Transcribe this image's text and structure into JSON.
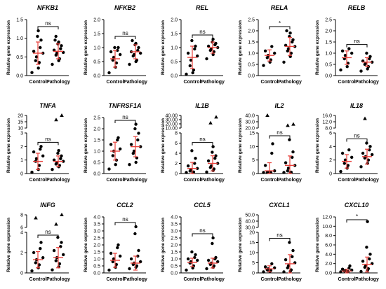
{
  "ylabel": "Relative gene expression",
  "groups": [
    "Control",
    "Pathology"
  ],
  "colors": {
    "points": "#000000",
    "marker": "#e8413b",
    "axis": "#000000",
    "text": "#000000"
  },
  "chart_data": [
    {
      "type": "scatter",
      "title": "NFKB1",
      "ylim": [
        0,
        1.5
      ],
      "ticks": [
        "0.0",
        "0.5",
        "1.0",
        "1.5"
      ],
      "sig": "ns",
      "series": [
        {
          "name": "Control",
          "values": [
            0.08,
            0.2,
            0.35,
            0.4,
            0.5,
            0.6,
            0.65,
            0.75,
            0.95,
            1.05,
            1.2
          ],
          "mean": 0.6,
          "sd": 0.3
        },
        {
          "name": "Pathology",
          "values": [
            0.3,
            0.4,
            0.45,
            0.55,
            0.6,
            0.62,
            0.68,
            0.72,
            0.8,
            0.85,
            0.9,
            0.95,
            1.05
          ],
          "mean": 0.65,
          "sd": 0.2
        }
      ]
    },
    {
      "type": "scatter",
      "title": "NFKB2",
      "ylim": [
        0,
        2.0
      ],
      "ticks": [
        "0.0",
        "0.5",
        "1.0",
        "1.5",
        "2.0"
      ],
      "sig": "ns",
      "series": [
        {
          "name": "Control",
          "values": [
            0.1,
            0.3,
            0.45,
            0.55,
            0.65,
            0.75,
            0.85,
            0.9,
            1.0,
            1.0
          ],
          "mean": 0.6,
          "sd": 0.3
        },
        {
          "name": "Pathology",
          "values": [
            0.4,
            0.5,
            0.55,
            0.7,
            0.75,
            0.8,
            0.85,
            0.9,
            1.0,
            1.1,
            1.15,
            1.25
          ],
          "mean": 0.85,
          "sd": 0.25
        }
      ]
    },
    {
      "type": "scatter",
      "title": "REL",
      "ylim": [
        0,
        2.0
      ],
      "ticks": [
        "0.0",
        "0.5",
        "1.0",
        "1.5",
        "2.0"
      ],
      "sig": "ns",
      "series": [
        {
          "name": "Control",
          "values": [
            0.05,
            0.1,
            0.2,
            0.35,
            0.55,
            0.7,
            0.8,
            0.95,
            1.05,
            1.25
          ],
          "mean": 0.65,
          "sd": 0.4
        },
        {
          "name": "Pathology",
          "values": [
            0.6,
            0.75,
            0.85,
            0.9,
            0.95,
            1.0,
            1.05,
            1.1,
            1.15,
            1.2,
            1.3
          ],
          "mean": 1.0,
          "sd": 0.2
        }
      ]
    },
    {
      "type": "scatter",
      "title": "RELA",
      "ylim": [
        0,
        2.5
      ],
      "ticks": [
        "0.0",
        "0.5",
        "1.0",
        "1.5",
        "2.0",
        "2.5"
      ],
      "sig": "*",
      "series": [
        {
          "name": "Control",
          "values": [
            0.45,
            0.6,
            0.7,
            0.8,
            0.9,
            1.0,
            1.1,
            1.3
          ],
          "mean": 0.9,
          "sd": 0.25
        },
        {
          "name": "Pathology",
          "values": [
            0.6,
            0.85,
            1.0,
            1.1,
            1.2,
            1.3,
            1.35,
            1.5,
            1.6,
            1.75,
            1.9,
            2.0
          ],
          "mean": 1.3,
          "sd": 0.4
        }
      ]
    },
    {
      "type": "scatter",
      "title": "RELB",
      "ylim": [
        0,
        2.5
      ],
      "ticks": [
        "0.0",
        "0.5",
        "1.0",
        "1.5",
        "2.0",
        "2.5"
      ],
      "sig": "ns",
      "series": [
        {
          "name": "Control",
          "values": [
            0.25,
            0.4,
            0.55,
            0.75,
            0.9,
            1.0,
            1.1,
            1.2
          ],
          "mean": 0.8,
          "sd": 0.3
        },
        {
          "name": "Pathology",
          "values": [
            0.2,
            0.3,
            0.4,
            0.5,
            0.55,
            0.6,
            0.65,
            0.75,
            0.85,
            1.0
          ],
          "mean": 0.6,
          "sd": 0.2
        }
      ]
    },
    {
      "type": "scatter",
      "title": "TNFA",
      "ylim": [
        0,
        3
      ],
      "ticks": [
        "0",
        "1",
        "2",
        "3"
      ],
      "break": [
        "10",
        "15",
        "20"
      ],
      "sig": "ns",
      "series": [
        {
          "name": "Control",
          "values": [
            0.1,
            0.3,
            0.6,
            0.9,
            1.1,
            1.3,
            1.6,
            1.8,
            2.0
          ],
          "mean": 0.9,
          "sd": 0.6
        },
        {
          "name": "Pathology",
          "values": [
            0.3,
            0.5,
            0.6,
            0.7,
            0.8,
            0.9,
            1.0,
            1.1,
            1.3,
            1.5,
            1.7
          ],
          "mean": 0.9,
          "sd": 0.4,
          "outliers": [
            16.5,
            20
          ]
        }
      ]
    },
    {
      "type": "scatter",
      "title": "TNFRSF1A",
      "ylim": [
        0,
        2.5
      ],
      "ticks": [
        "0.0",
        "0.5",
        "1.0",
        "1.5",
        "2.0",
        "2.5"
      ],
      "sig": "ns",
      "series": [
        {
          "name": "Control",
          "values": [
            0.2,
            0.4,
            0.6,
            0.8,
            1.0,
            1.1,
            1.3,
            1.5,
            1.6
          ],
          "mean": 1.0,
          "sd": 0.4
        },
        {
          "name": "Pathology",
          "values": [
            0.4,
            0.5,
            0.7,
            0.9,
            1.0,
            1.2,
            1.3,
            1.5,
            1.8,
            2.0,
            2.2
          ],
          "mean": 1.2,
          "sd": 0.45
        }
      ]
    },
    {
      "type": "scatter",
      "title": "IL1B",
      "ylim": [
        0,
        8
      ],
      "ticks": [
        "0",
        "2",
        "4",
        "6",
        "8"
      ],
      "break": [
        "10.00",
        "20.00",
        "30.00",
        "40.00"
      ],
      "sig": "ns",
      "series": [
        {
          "name": "Control",
          "values": [
            0.1,
            0.2,
            0.3,
            0.5,
            0.8,
            1.0,
            1.5,
            2.0,
            3.0,
            4.5
          ],
          "mean": 1.0,
          "sd": 1.2
        },
        {
          "name": "Pathology",
          "values": [
            0.3,
            0.6,
            0.9,
            1.2,
            1.5,
            2.0,
            2.5,
            3.0,
            3.5,
            4.2,
            5.3
          ],
          "mean": 2.0,
          "sd": 1.5,
          "outliers": [
            22,
            36
          ]
        }
      ]
    },
    {
      "type": "scatter",
      "title": "IL2",
      "ylim": [
        0,
        15
      ],
      "ticks": [
        "0",
        "5",
        "10",
        "15"
      ],
      "break": [
        "20.0",
        "30.0",
        "40.0"
      ],
      "sig": "ns",
      "series": [
        {
          "name": "Control",
          "values": [
            0.0,
            0.1,
            0.2,
            0.3,
            0.5,
            1.0,
            3.0,
            7.5,
            11.0
          ],
          "mean": 1.0,
          "sd": 3.0,
          "outliers": [
            40
          ]
        },
        {
          "name": "Pathology",
          "values": [
            0.0,
            0.2,
            0.5,
            1.0,
            2.0,
            3.0,
            4.0,
            6.0,
            8.0,
            12.5
          ],
          "mean": 3.0,
          "sd": 3.5,
          "outliers": [
            24,
            26
          ]
        }
      ]
    },
    {
      "type": "scatter",
      "title": "IL18",
      "ylim": [
        0,
        6
      ],
      "ticks": [
        "0",
        "2",
        "4",
        "6"
      ],
      "break": [
        "8.0",
        "12.0",
        "16.0"
      ],
      "sig": "ns",
      "series": [
        {
          "name": "Control",
          "values": [
            0.3,
            0.8,
            1.2,
            1.5,
            2.0,
            2.4,
            3.0,
            3.5
          ],
          "mean": 1.8,
          "sd": 1.0
        },
        {
          "name": "Pathology",
          "values": [
            1.0,
            1.5,
            2.0,
            2.3,
            2.5,
            2.8,
            3.0,
            3.5,
            4.0,
            4.5
          ],
          "mean": 2.5,
          "sd": 1.1,
          "outliers": [
            14
          ]
        }
      ]
    },
    {
      "type": "scatter",
      "title": "INFG",
      "ylim": [
        0,
        4
      ],
      "ticks": [
        "0",
        "2",
        "4"
      ],
      "break": [
        "6",
        "8"
      ],
      "sig": "ns",
      "series": [
        {
          "name": "Control",
          "values": [
            0.2,
            0.5,
            0.8,
            1.0,
            1.3,
            1.5,
            2.0,
            2.4,
            3.0
          ],
          "mean": 1.3,
          "sd": 0.8,
          "outliers": [
            7.5
          ]
        },
        {
          "name": "Pathology",
          "values": [
            0.3,
            0.6,
            0.9,
            1.2,
            1.5,
            1.8,
            2.2,
            2.6,
            3.0,
            3.5
          ],
          "mean": 1.5,
          "sd": 1.0,
          "outliers": [
            6.5,
            8
          ]
        }
      ]
    },
    {
      "type": "scatter",
      "title": "CCL2",
      "ylim": [
        0,
        4
      ],
      "ticks": [
        "0.0",
        "0.5",
        "1.0",
        "1.5",
        "2.0",
        "2.5",
        "3.0",
        "3.5",
        "4.0"
      ],
      "sig": "ns",
      "series": [
        {
          "name": "Control",
          "values": [
            0.2,
            0.4,
            0.6,
            0.8,
            1.0,
            1.2,
            1.4,
            1.8,
            2.0
          ],
          "mean": 0.9,
          "sd": 0.5
        },
        {
          "name": "Pathology",
          "values": [
            0.3,
            0.4,
            0.5,
            0.6,
            0.7,
            0.8,
            1.0,
            1.2,
            1.6,
            2.8,
            3.3
          ],
          "mean": 0.7,
          "sd": 0.5
        }
      ]
    },
    {
      "type": "scatter",
      "title": "CCL5",
      "ylim": [
        0,
        4
      ],
      "ticks": [
        "0.0",
        "0.5",
        "1.0",
        "1.5",
        "2.0",
        "2.5",
        "3.0",
        "3.5",
        "4.0"
      ],
      "sig": "ns",
      "series": [
        {
          "name": "Control",
          "values": [
            0.2,
            0.35,
            0.5,
            0.7,
            0.8,
            0.9,
            1.0,
            1.1,
            1.3,
            1.5
          ],
          "mean": 0.75,
          "sd": 0.3
        },
        {
          "name": "Pathology",
          "values": [
            0.3,
            0.4,
            0.5,
            0.6,
            0.7,
            0.8,
            0.9,
            1.0,
            1.1,
            2.1,
            2.5
          ],
          "mean": 0.7,
          "sd": 0.35
        }
      ]
    },
    {
      "type": "scatter",
      "title": "CXCL1",
      "ylim": [
        0,
        20
      ],
      "ticks": [
        "0",
        "5",
        "10",
        "15",
        "20"
      ],
      "break": [
        "30.0",
        "40.0",
        "50.0"
      ],
      "sig": "ns",
      "series": [
        {
          "name": "Control",
          "values": [
            0.5,
            0.8,
            1.2,
            1.5,
            2.0,
            2.5,
            3.0,
            4.5
          ],
          "mean": 2.0,
          "sd": 1.5
        },
        {
          "name": "Pathology",
          "values": [
            0.3,
            0.8,
            1.5,
            2.5,
            3.5,
            5.0,
            6.5,
            8.0,
            11.0,
            15.0
          ],
          "mean": 4.5,
          "sd": 4.5
        }
      ]
    },
    {
      "type": "scatter",
      "title": "CXCL10",
      "ylim": [
        0,
        12
      ],
      "ticks": [
        "0.0",
        "2.0",
        "4.0",
        "6.0",
        "8.0",
        "10.0",
        "12.0"
      ],
      "sig": "*",
      "series": [
        {
          "name": "Control",
          "values": [
            0.1,
            0.2,
            0.3,
            0.4,
            0.5,
            0.6,
            0.8,
            1.0,
            1.5
          ],
          "mean": 0.4,
          "sd": 0.4
        },
        {
          "name": "Pathology",
          "values": [
            0.3,
            0.6,
            0.9,
            1.2,
            1.6,
            2.0,
            2.5,
            3.0,
            4.0,
            5.5,
            11.0
          ],
          "mean": 1.8,
          "sd": 1.6
        }
      ]
    }
  ]
}
